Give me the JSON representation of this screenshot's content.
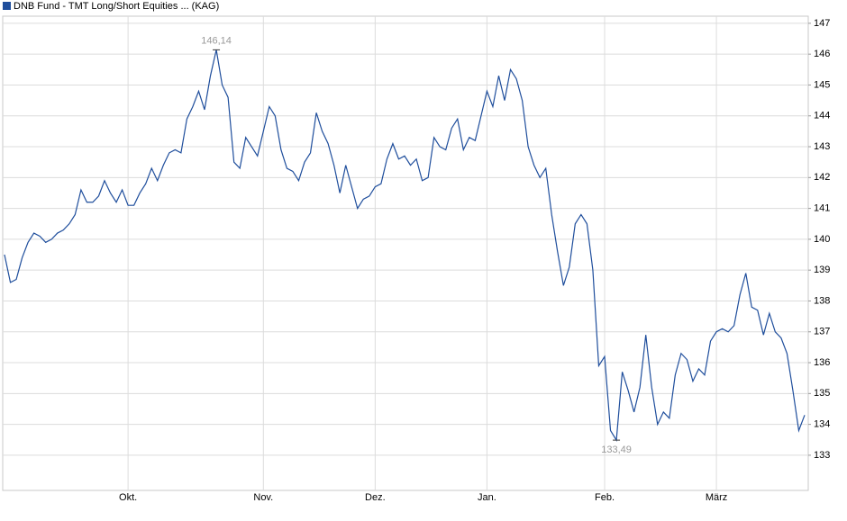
{
  "chart_data": {
    "type": "line",
    "series": [
      {
        "name": "DNB Fund - TMT Long/Short Equities ... (KAG)",
        "color": "#1f4e9c",
        "values": [
          139.5,
          138.6,
          138.7,
          139.4,
          139.9,
          140.2,
          140.1,
          139.9,
          140.0,
          140.2,
          140.3,
          140.5,
          140.8,
          141.6,
          141.2,
          141.2,
          141.4,
          141.9,
          141.5,
          141.2,
          141.6,
          141.1,
          141.1,
          141.5,
          141.8,
          142.3,
          141.9,
          142.4,
          142.8,
          142.9,
          142.8,
          143.9,
          144.3,
          144.8,
          144.2,
          145.3,
          146.14,
          145.0,
          144.6,
          142.5,
          142.3,
          143.3,
          143.0,
          142.7,
          143.5,
          144.3,
          144.0,
          142.9,
          142.3,
          142.2,
          141.9,
          142.5,
          142.8,
          144.1,
          143.5,
          143.1,
          142.4,
          141.5,
          142.4,
          141.7,
          141.0,
          141.3,
          141.4,
          141.7,
          141.8,
          142.6,
          143.1,
          142.6,
          142.7,
          142.4,
          142.6,
          141.9,
          142.0,
          143.3,
          143.0,
          142.9,
          143.6,
          143.9,
          142.9,
          143.3,
          143.2,
          144.0,
          144.8,
          144.3,
          145.3,
          144.5,
          145.5,
          145.2,
          144.5,
          143.0,
          142.4,
          142.0,
          142.3,
          140.8,
          139.6,
          138.5,
          139.1,
          140.5,
          140.8,
          140.5,
          139.0,
          135.9,
          136.2,
          133.8,
          133.49,
          135.7,
          135.1,
          134.4,
          135.2,
          136.9,
          135.2,
          134.0,
          134.4,
          134.2,
          135.6,
          136.3,
          136.1,
          135.4,
          135.8,
          135.6,
          136.7,
          137.0,
          137.1,
          137.0,
          137.2,
          138.2,
          138.9,
          137.8,
          137.7,
          136.9,
          137.6,
          137.0,
          136.8,
          136.3,
          135.1,
          133.8,
          134.3
        ]
      }
    ],
    "categories": [
      null,
      null,
      null,
      null,
      null,
      null,
      null,
      null,
      null,
      null,
      null,
      null,
      null,
      null,
      null,
      null,
      null,
      null,
      null,
      null,
      null,
      "Okt.",
      null,
      null,
      null,
      null,
      null,
      null,
      null,
      null,
      null,
      null,
      null,
      null,
      null,
      null,
      null,
      null,
      null,
      null,
      null,
      null,
      null,
      null,
      "Nov.",
      null,
      null,
      null,
      null,
      null,
      null,
      null,
      null,
      null,
      null,
      null,
      null,
      null,
      null,
      null,
      null,
      null,
      null,
      "Dez.",
      null,
      null,
      null,
      null,
      null,
      null,
      null,
      null,
      null,
      null,
      null,
      null,
      null,
      null,
      null,
      null,
      null,
      null,
      "Jan.",
      null,
      null,
      null,
      null,
      null,
      null,
      null,
      null,
      null,
      null,
      null,
      null,
      null,
      null,
      null,
      null,
      null,
      null,
      null,
      "Feb.",
      null,
      null,
      null,
      null,
      null,
      null,
      null,
      null,
      null,
      null,
      null,
      null,
      null,
      null,
      null,
      null,
      null,
      null,
      "März",
      null,
      null,
      null,
      null,
      null,
      null,
      null,
      null,
      null,
      null,
      null,
      null,
      null,
      null,
      null
    ],
    "ylim": [
      131.86,
      147.23
    ],
    "yticks": [
      133,
      134,
      135,
      136,
      137,
      138,
      139,
      140,
      141,
      142,
      143,
      144,
      145,
      146,
      147
    ],
    "grid": true,
    "annotations": [
      {
        "text": "146,14",
        "value": 146.14
      },
      {
        "text": "133,49",
        "value": 133.49
      }
    ]
  }
}
